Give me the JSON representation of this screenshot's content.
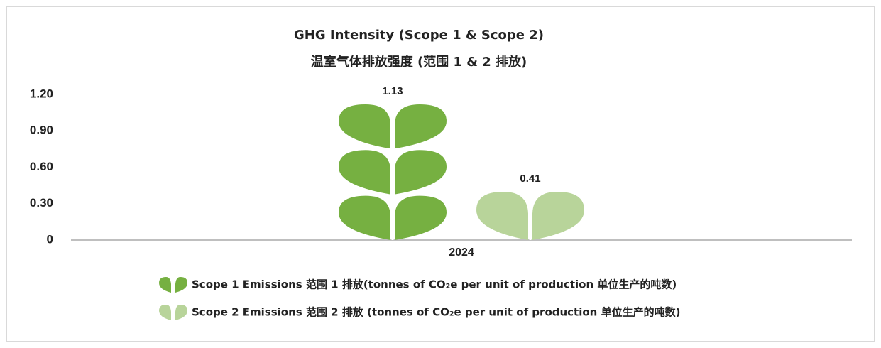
{
  "chart_data": {
    "type": "pictogram-bar",
    "title": "GHG Intensity (Scope 1 & Scope 2)",
    "subtitle": "温室气体排放强度 (范围 1 & 2 排放)",
    "categories": [
      "2024"
    ],
    "series": [
      {
        "name": "Scope 1 Emissions 范围 1 排放(tonnes of CO₂e per unit of production 单位生产的吨数)",
        "color": "#76b041",
        "values": [
          1.13
        ]
      },
      {
        "name": "Scope 2 Emissions 范围 2 排放 (tonnes of CO₂e per unit of production 单位生产的吨数)",
        "color": "#b8d49a",
        "values": [
          0.41
        ]
      }
    ],
    "ylim": [
      0,
      1.2
    ],
    "yticks": [
      0,
      {
        "value": 0.3,
        "label": "0.30"
      },
      {
        "value": 0.6,
        "label": "0.60"
      },
      {
        "value": 0.9,
        "label": "0.90"
      },
      {
        "value": 1.2,
        "label": "1.20"
      }
    ],
    "grid": false
  }
}
